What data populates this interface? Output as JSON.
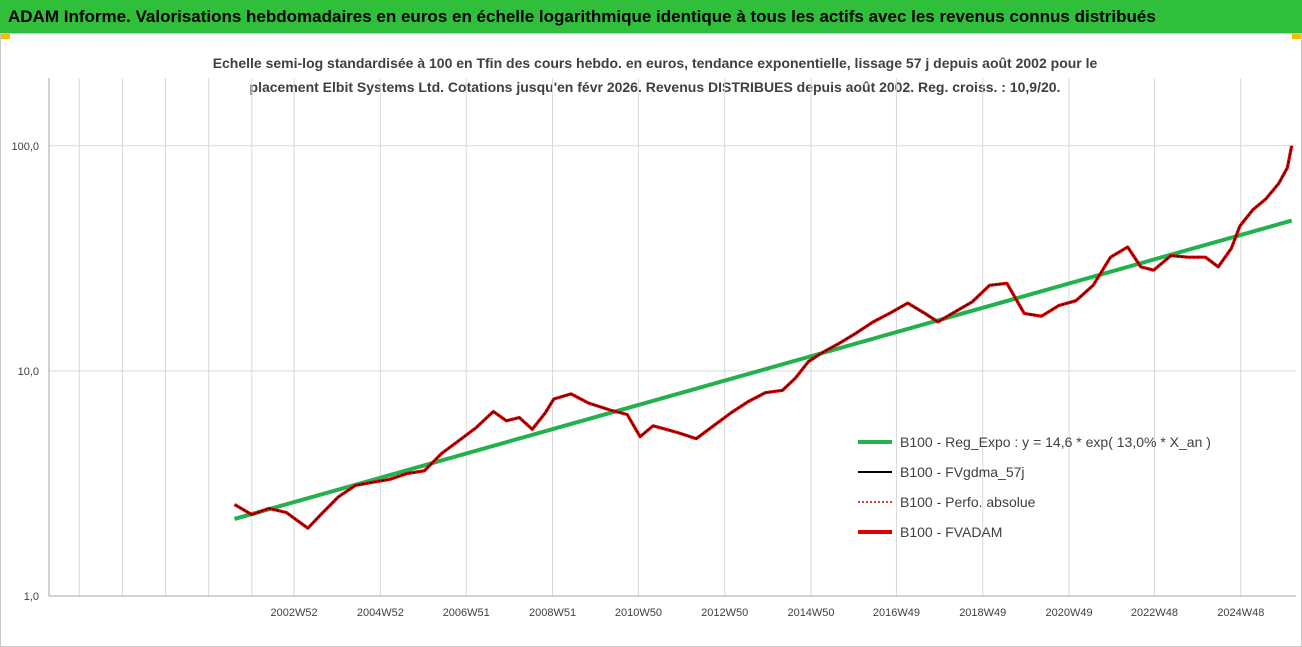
{
  "header": {
    "title": "ADAM Informe. Valorisations hebdomadaires en euros en échelle logarithmique identique à tous les actifs avec les revenus connus distribués"
  },
  "chart_data": {
    "type": "line",
    "title": "Echelle semi-log standardisée à 100 en Tfin des cours hebdo. en euros, tendance exponentielle, lissage 57 j depuis août 2002 pour le placement Elbit Systems Ltd. Cotations jusqu'en févr 2026.  Revenus DISTRIBUES depuis août 2002. Reg. croiss. : 10,9/20.",
    "title_lines": [
      "Echelle semi-log standardisée à 100 en Tfin des cours hebdo. en euros, tendance exponentielle, lissage 57 j depuis août 2002 pour le",
      "placement Elbit Systems Ltd. Cotations jusqu'en févr 2026.  Revenus DISTRIBUES depuis août 2002. Reg. croiss. : 10,9/20."
    ],
    "y_scale": "log",
    "ylim": [
      1,
      200
    ],
    "y_ticks": [
      1,
      10,
      100
    ],
    "y_tick_labels": [
      "1,0",
      "10,0",
      "100,0"
    ],
    "xlim": [
      1997.3,
      2026.2
    ],
    "x_ticks": [
      2002.98,
      2004.98,
      2006.97,
      2008.97,
      2010.96,
      2012.96,
      2014.96,
      2016.94,
      2018.94,
      2020.94,
      2022.92,
      2024.92
    ],
    "x_tick_labels": [
      "2002W52",
      "2004W52",
      "2006W51",
      "2008W51",
      "2010W50",
      "2012W50",
      "2014W50",
      "2016W49",
      "2018W49",
      "2020W49",
      "2022W48",
      "2024W48"
    ],
    "vertical_grid_x": [
      1998.0,
      1999.0,
      2000.0,
      2001.0,
      2002.0,
      2002.98,
      2004.98,
      2006.97,
      2008.97,
      2010.96,
      2012.96,
      2014.96,
      2016.94,
      2018.94,
      2020.94,
      2022.92,
      2024.92
    ],
    "grid": true,
    "legend_position": "right-bottom",
    "series": [
      {
        "name": "B100 - Reg_Expo : y = 14,6 * exp( 13,0% *  X_an )",
        "color": "#22b14c",
        "style": "thick",
        "x": [
          2001.6,
          2026.1
        ],
        "y": [
          2.2,
          46.5
        ]
      },
      {
        "name": "B100 - FVgdma_57j",
        "color": "#000000",
        "style": "thin"
      },
      {
        "name": "B100 - Perfo. absolue",
        "color": "#cc0000",
        "style": "dotted"
      },
      {
        "name": "B100 - FVADAM",
        "color": "#e00000",
        "style": "thick",
        "x": [
          2001.6,
          2002.0,
          2002.4,
          2002.8,
          2003.3,
          2003.6,
          2004.0,
          2004.4,
          2004.8,
          2005.2,
          2005.6,
          2006.0,
          2006.4,
          2006.8,
          2007.2,
          2007.6,
          2007.9,
          2008.2,
          2008.5,
          2008.8,
          2009.0,
          2009.4,
          2009.8,
          2010.3,
          2010.7,
          2011.0,
          2011.3,
          2011.6,
          2011.9,
          2012.3,
          2012.7,
          2013.1,
          2013.5,
          2013.9,
          2014.3,
          2014.6,
          2014.9,
          2015.2,
          2015.6,
          2016.0,
          2016.4,
          2016.8,
          2017.2,
          2017.6,
          2017.9,
          2018.3,
          2018.7,
          2019.1,
          2019.5,
          2019.9,
          2020.3,
          2020.7,
          2021.1,
          2021.5,
          2021.9,
          2022.3,
          2022.6,
          2022.9,
          2023.3,
          2023.7,
          2024.1,
          2024.4,
          2024.7,
          2024.9,
          2025.2,
          2025.5,
          2025.8,
          2026.0,
          2026.1
        ],
        "y": [
          2.55,
          2.3,
          2.45,
          2.35,
          2.0,
          2.3,
          2.75,
          3.1,
          3.2,
          3.3,
          3.5,
          3.6,
          4.3,
          4.9,
          5.6,
          6.6,
          6.0,
          6.2,
          5.5,
          6.5,
          7.5,
          7.9,
          7.2,
          6.7,
          6.4,
          5.1,
          5.7,
          5.5,
          5.3,
          5.0,
          5.7,
          6.5,
          7.3,
          8.0,
          8.2,
          9.3,
          11.0,
          12.0,
          13.2,
          14.7,
          16.5,
          18.1,
          20.0,
          18.0,
          16.5,
          18.3,
          20.3,
          24.0,
          24.5,
          18.0,
          17.5,
          19.5,
          20.5,
          24.0,
          32.0,
          35.5,
          29.0,
          28.0,
          32.5,
          32.0,
          32.0,
          29.0,
          35.0,
          44.0,
          52.0,
          58.0,
          68.0,
          80.0,
          100.0
        ]
      }
    ]
  }
}
